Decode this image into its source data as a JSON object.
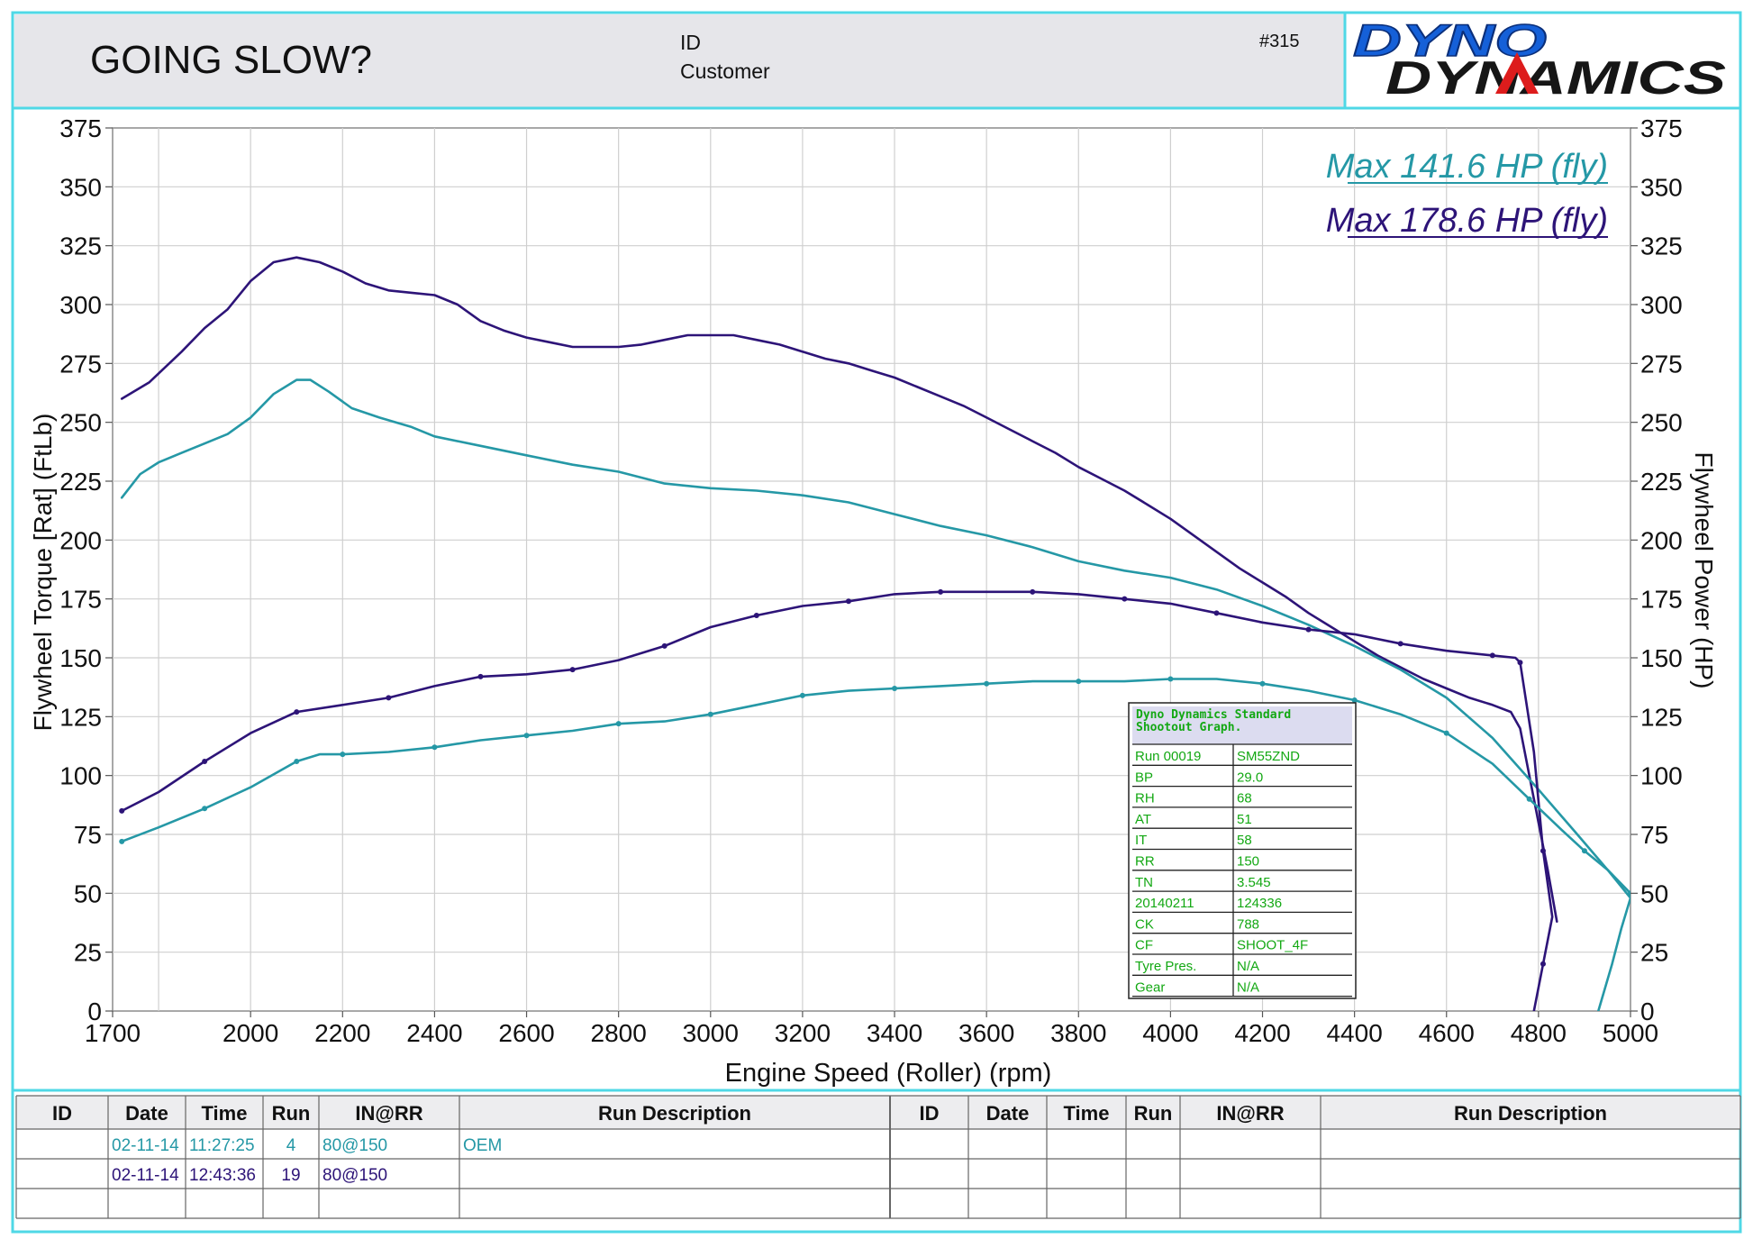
{
  "header": {
    "title": "GOING SLOW?",
    "id_label": "ID",
    "customer_label": "Customer",
    "sheet_number": "#315",
    "logo_line1": "DYNO",
    "logo_line2": "DYNAMICS"
  },
  "colors": {
    "run_oem": "#2598a6",
    "run_19": "#2d1478",
    "frame": "#4fd8e6",
    "info_text": "#13a813",
    "logo_blue": "#1560d8",
    "logo_red": "#dd1c1c"
  },
  "chart_data": {
    "type": "line",
    "xlabel": "Engine Speed (Roller) (rpm)",
    "ylabel_left": "Flywheel Torque [Rat] (FtLb)",
    "ylabel_right": "Flywheel Power (HP)",
    "xlim": [
      1700,
      5000
    ],
    "ylim": [
      0,
      375
    ],
    "x_ticks": [
      "1700",
      "2000",
      "2200",
      "2400",
      "2600",
      "2800",
      "3000",
      "3200",
      "3400",
      "3600",
      "3800",
      "4000",
      "4200",
      "4400",
      "4600",
      "4800",
      "5000"
    ],
    "x_tick_values": [
      1700,
      2000,
      2200,
      2400,
      2600,
      2800,
      3000,
      3200,
      3400,
      3600,
      3800,
      4000,
      4200,
      4400,
      4600,
      4800,
      5000
    ],
    "x_minor_grid": [
      1800
    ],
    "y_ticks": [
      "0",
      "25",
      "50",
      "75",
      "100",
      "125",
      "150",
      "175",
      "200",
      "225",
      "250",
      "275",
      "300",
      "325",
      "350",
      "375"
    ],
    "y_tick_values": [
      0,
      25,
      50,
      75,
      100,
      125,
      150,
      175,
      200,
      225,
      250,
      275,
      300,
      325,
      350,
      375
    ],
    "grid": true,
    "legend": [
      "Max 141.6 HP (fly)",
      "Max 178.6 HP (fly)"
    ],
    "series": [
      {
        "kind": "torque",
        "color": "#2d1478",
        "points": [
          [
            1720,
            260
          ],
          [
            1780,
            267
          ],
          [
            1850,
            280
          ],
          [
            1900,
            290
          ],
          [
            1950,
            298
          ],
          [
            2000,
            310
          ],
          [
            2050,
            318
          ],
          [
            2100,
            320
          ],
          [
            2150,
            318
          ],
          [
            2200,
            314
          ],
          [
            2250,
            309
          ],
          [
            2300,
            306
          ],
          [
            2350,
            305
          ],
          [
            2400,
            304
          ],
          [
            2450,
            300
          ],
          [
            2500,
            293
          ],
          [
            2550,
            289
          ],
          [
            2600,
            286
          ],
          [
            2650,
            284
          ],
          [
            2700,
            282
          ],
          [
            2750,
            282
          ],
          [
            2800,
            282
          ],
          [
            2850,
            283
          ],
          [
            2900,
            285
          ],
          [
            2950,
            287
          ],
          [
            3000,
            287
          ],
          [
            3050,
            287
          ],
          [
            3100,
            285
          ],
          [
            3150,
            283
          ],
          [
            3200,
            280
          ],
          [
            3250,
            277
          ],
          [
            3300,
            275
          ],
          [
            3350,
            272
          ],
          [
            3400,
            269
          ],
          [
            3450,
            265
          ],
          [
            3500,
            261
          ],
          [
            3550,
            257
          ],
          [
            3600,
            252
          ],
          [
            3650,
            247
          ],
          [
            3700,
            242
          ],
          [
            3750,
            237
          ],
          [
            3800,
            231
          ],
          [
            3850,
            226
          ],
          [
            3900,
            221
          ],
          [
            3950,
            215
          ],
          [
            4000,
            209
          ],
          [
            4050,
            202
          ],
          [
            4100,
            195
          ],
          [
            4150,
            188
          ],
          [
            4200,
            182
          ],
          [
            4250,
            176
          ],
          [
            4300,
            169
          ],
          [
            4350,
            163
          ],
          [
            4400,
            157
          ],
          [
            4450,
            151
          ],
          [
            4500,
            146
          ],
          [
            4550,
            141
          ],
          [
            4600,
            137
          ],
          [
            4650,
            133
          ],
          [
            4700,
            130
          ],
          [
            4740,
            127
          ],
          [
            4760,
            120
          ],
          [
            4790,
            90
          ],
          [
            4820,
            60
          ],
          [
            4840,
            38
          ]
        ]
      },
      {
        "kind": "torque",
        "color": "#2598a6",
        "points": [
          [
            1720,
            218
          ],
          [
            1760,
            228
          ],
          [
            1800,
            233
          ],
          [
            1850,
            237
          ],
          [
            1900,
            241
          ],
          [
            1950,
            245
          ],
          [
            2000,
            252
          ],
          [
            2050,
            262
          ],
          [
            2100,
            268
          ],
          [
            2130,
            268
          ],
          [
            2170,
            263
          ],
          [
            2220,
            256
          ],
          [
            2280,
            252
          ],
          [
            2350,
            248
          ],
          [
            2400,
            244
          ],
          [
            2500,
            240
          ],
          [
            2600,
            236
          ],
          [
            2700,
            232
          ],
          [
            2800,
            229
          ],
          [
            2900,
            224
          ],
          [
            3000,
            222
          ],
          [
            3100,
            221
          ],
          [
            3200,
            219
          ],
          [
            3300,
            216
          ],
          [
            3400,
            211
          ],
          [
            3500,
            206
          ],
          [
            3600,
            202
          ],
          [
            3700,
            197
          ],
          [
            3800,
            191
          ],
          [
            3900,
            187
          ],
          [
            4000,
            184
          ],
          [
            4100,
            179
          ],
          [
            4200,
            172
          ],
          [
            4300,
            164
          ],
          [
            4400,
            155
          ],
          [
            4500,
            145
          ],
          [
            4600,
            133
          ],
          [
            4700,
            116
          ],
          [
            4800,
            94
          ],
          [
            4880,
            76
          ],
          [
            4950,
            60
          ],
          [
            5000,
            48
          ],
          [
            4980,
            35
          ],
          [
            4960,
            20
          ],
          [
            4930,
            0
          ]
        ]
      },
      {
        "kind": "power",
        "color": "#2d1478",
        "points": [
          [
            1720,
            85
          ],
          [
            1800,
            93
          ],
          [
            1900,
            106
          ],
          [
            2000,
            118
          ],
          [
            2100,
            127
          ],
          [
            2200,
            130
          ],
          [
            2300,
            133
          ],
          [
            2400,
            138
          ],
          [
            2500,
            142
          ],
          [
            2600,
            143
          ],
          [
            2700,
            145
          ],
          [
            2800,
            149
          ],
          [
            2900,
            155
          ],
          [
            3000,
            163
          ],
          [
            3100,
            168
          ],
          [
            3200,
            172
          ],
          [
            3300,
            174
          ],
          [
            3400,
            177
          ],
          [
            3500,
            178
          ],
          [
            3600,
            178
          ],
          [
            3700,
            178
          ],
          [
            3800,
            177
          ],
          [
            3900,
            175
          ],
          [
            4000,
            173
          ],
          [
            4100,
            169
          ],
          [
            4200,
            165
          ],
          [
            4300,
            162
          ],
          [
            4400,
            160
          ],
          [
            4500,
            156
          ],
          [
            4600,
            153
          ],
          [
            4700,
            151
          ],
          [
            4750,
            150
          ],
          [
            4760,
            148
          ],
          [
            4790,
            110
          ],
          [
            4810,
            68
          ],
          [
            4830,
            40
          ],
          [
            4810,
            20
          ],
          [
            4790,
            0
          ]
        ]
      },
      {
        "kind": "power",
        "color": "#2598a6",
        "points": [
          [
            1720,
            72
          ],
          [
            1800,
            78
          ],
          [
            1900,
            86
          ],
          [
            2000,
            95
          ],
          [
            2100,
            106
          ],
          [
            2150,
            109
          ],
          [
            2200,
            109
          ],
          [
            2300,
            110
          ],
          [
            2400,
            112
          ],
          [
            2500,
            115
          ],
          [
            2600,
            117
          ],
          [
            2700,
            119
          ],
          [
            2800,
            122
          ],
          [
            2900,
            123
          ],
          [
            3000,
            126
          ],
          [
            3100,
            130
          ],
          [
            3200,
            134
          ],
          [
            3300,
            136
          ],
          [
            3400,
            137
          ],
          [
            3500,
            138
          ],
          [
            3600,
            139
          ],
          [
            3700,
            140
          ],
          [
            3800,
            140
          ],
          [
            3900,
            140
          ],
          [
            4000,
            141
          ],
          [
            4100,
            141
          ],
          [
            4200,
            139
          ],
          [
            4300,
            136
          ],
          [
            4400,
            132
          ],
          [
            4500,
            126
          ],
          [
            4600,
            118
          ],
          [
            4700,
            105
          ],
          [
            4780,
            90
          ],
          [
            4850,
            77
          ],
          [
            4900,
            68
          ],
          [
            4950,
            60
          ],
          [
            5000,
            50
          ]
        ]
      }
    ]
  },
  "info_box": {
    "title_line1": "Dyno Dynamics Standard",
    "title_line2": "Shootout Graph.",
    "rows": [
      [
        "Run 00019",
        "SM55ZND"
      ],
      [
        "BP",
        "29.0"
      ],
      [
        "RH",
        "68"
      ],
      [
        "AT",
        "51"
      ],
      [
        "IT",
        "58"
      ],
      [
        "RR",
        "150"
      ],
      [
        "TN",
        "3.545"
      ],
      [
        "20140211",
        "124336"
      ],
      [
        "CK",
        "788"
      ],
      [
        "CF",
        "SHOOT_4F"
      ],
      [
        "Tyre Pres.",
        "N/A"
      ],
      [
        "Gear",
        "N/A"
      ]
    ]
  },
  "table": {
    "headers": [
      "ID",
      "Date",
      "Time",
      "Run",
      "IN@RR",
      "Run Description",
      "ID",
      "Date",
      "Time",
      "Run",
      "IN@RR",
      "Run Description"
    ],
    "rows": [
      {
        "color": "#2598a6",
        "cells": [
          "",
          "02-11-14",
          "11:27:25",
          "4",
          "80@150",
          "OEM",
          "",
          "",
          "",
          "",
          "",
          ""
        ]
      },
      {
        "color": "#2d1478",
        "cells": [
          "",
          "02-11-14",
          "12:43:36",
          "19",
          "80@150",
          "",
          "",
          "",
          "",
          "",
          "",
          ""
        ]
      },
      {
        "color": "#000000",
        "cells": [
          "",
          "",
          "",
          "",
          "",
          "",
          "",
          "",
          "",
          "",
          "",
          ""
        ]
      }
    ]
  }
}
